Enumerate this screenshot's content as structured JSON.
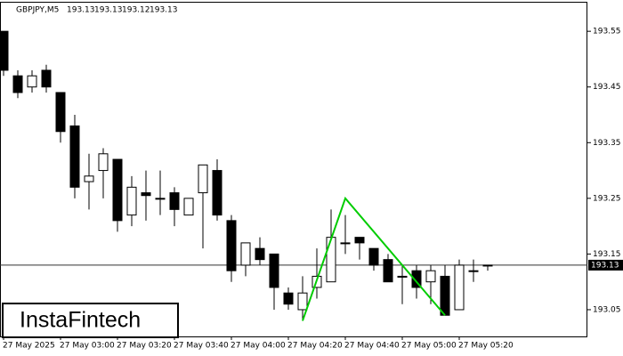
{
  "chart_data": {
    "type": "candlestick",
    "title": "GBPJPY,M5",
    "header_values": [
      193.13,
      193.13,
      193.12,
      193.13
    ],
    "categories": [
      "27 May 2025",
      null,
      null,
      null,
      "27 May 03:00",
      null,
      null,
      null,
      "27 May 03:20",
      null,
      null,
      null,
      "27 May 03:40",
      null,
      null,
      null,
      "27 May 04:00",
      null,
      null,
      null,
      "27 May 04:20",
      null,
      null,
      null,
      "27 May 04:40",
      null,
      null,
      null,
      "27 May 05:00",
      null,
      null,
      null,
      "27 May 05:20",
      null,
      null
    ],
    "open": [
      193.55,
      193.47,
      193.45,
      193.48,
      193.44,
      193.38,
      193.28,
      193.3,
      193.32,
      193.22,
      193.26,
      193.25,
      193.26,
      193.22,
      193.26,
      193.3,
      193.21,
      193.13,
      193.16,
      193.15,
      193.08,
      193.05,
      193.09,
      193.1,
      193.17,
      193.18,
      193.16,
      193.14,
      193.11,
      193.12,
      193.1,
      193.11,
      193.05,
      193.12,
      193.13
    ],
    "high": [
      193.55,
      193.48,
      193.48,
      193.49,
      193.44,
      193.4,
      193.33,
      193.34,
      193.32,
      193.29,
      193.3,
      193.3,
      193.27,
      193.25,
      193.31,
      193.32,
      193.22,
      193.17,
      193.18,
      193.15,
      193.09,
      193.11,
      193.16,
      193.23,
      193.22,
      193.18,
      193.16,
      193.15,
      193.13,
      193.13,
      193.13,
      193.13,
      193.14,
      193.14,
      193.13
    ],
    "low": [
      193.47,
      193.43,
      193.44,
      193.44,
      193.35,
      193.25,
      193.23,
      193.25,
      193.19,
      193.2,
      193.21,
      193.22,
      193.2,
      193.22,
      193.16,
      193.21,
      193.1,
      193.11,
      193.13,
      193.05,
      193.05,
      193.03,
      193.07,
      193.1,
      193.15,
      193.14,
      193.12,
      193.1,
      193.06,
      193.07,
      193.06,
      193.04,
      193.05,
      193.1,
      193.12
    ],
    "close": [
      193.48,
      193.44,
      193.47,
      193.45,
      193.37,
      193.27,
      193.29,
      193.33,
      193.21,
      193.27,
      193.255,
      193.25,
      193.23,
      193.25,
      193.31,
      193.22,
      193.12,
      193.17,
      193.14,
      193.09,
      193.06,
      193.08,
      193.11,
      193.18,
      193.17,
      193.17,
      193.13,
      193.1,
      193.11,
      193.09,
      193.12,
      193.04,
      193.13,
      193.12,
      193.13
    ],
    "pattern": {
      "color": "#00cc00",
      "points": [
        {
          "x": 21,
          "y": 193.03
        },
        {
          "x": 24,
          "y": 193.25
        },
        {
          "x": 31,
          "y": 193.04
        }
      ]
    },
    "last_price": 193.13,
    "ylim": [
      193.002,
      193.603
    ],
    "yticks": [
      193.05,
      193.15,
      193.25,
      193.35,
      193.45,
      193.55
    ],
    "watermark": "InstaFintech"
  }
}
